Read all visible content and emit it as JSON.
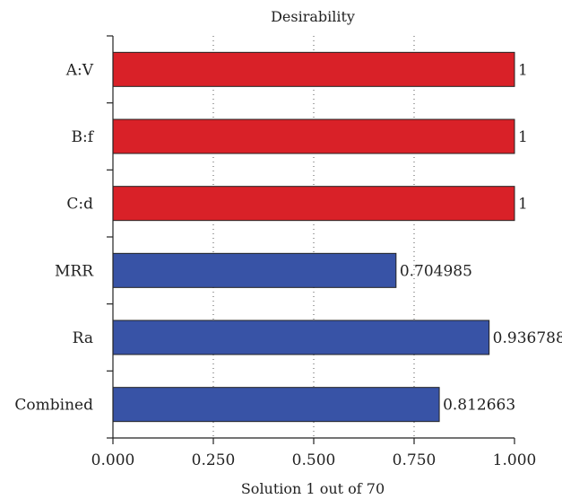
{
  "chart_data": {
    "type": "bar",
    "orientation": "horizontal",
    "title": "Desirability",
    "xlabel": "Solution 1 out of 70",
    "ylabel": "",
    "xlim": [
      0,
      1
    ],
    "xticks": [
      "0.000",
      "0.250",
      "0.500",
      "0.750",
      "1.000"
    ],
    "categories": [
      "A:V",
      "B:f",
      "C:d",
      "MRR",
      "Ra",
      "Combined"
    ],
    "values": [
      1,
      1,
      1,
      0.704985,
      0.936788,
      0.812663
    ],
    "value_labels": [
      "1",
      "1",
      "1",
      "0.704985",
      "0.936788",
      "0.812663"
    ],
    "bar_colors": [
      "#d92128",
      "#d92128",
      "#d92128",
      "#3853a6",
      "#3853a6",
      "#3853a6"
    ],
    "grid": "dotted vertical"
  }
}
